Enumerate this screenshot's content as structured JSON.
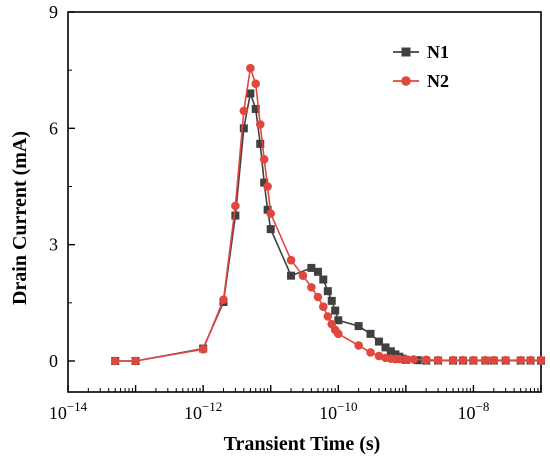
{
  "chart_data": {
    "type": "line",
    "xlabel": "Transient Time (s)",
    "ylabel": "Drain Current (mA)",
    "x_scale": "log",
    "xlim": [
      1e-14,
      1e-07
    ],
    "ylim": [
      -0.8,
      9.0
    ],
    "x_ticks": [
      {
        "value": 1e-14,
        "base": "10",
        "exp": "−14"
      },
      {
        "value": 1e-12,
        "base": "10",
        "exp": "−12"
      },
      {
        "value": 1e-10,
        "base": "10",
        "exp": "−10"
      },
      {
        "value": 1e-08,
        "base": "10",
        "exp": "−8"
      }
    ],
    "y_ticks": [
      0,
      3,
      6,
      9
    ],
    "legend_position": "top-right",
    "grid": false,
    "series": [
      {
        "name": "N1",
        "color": "#404040",
        "marker": "square",
        "x": [
          5e-14,
          1e-13,
          1e-12,
          2e-12,
          3e-12,
          4e-12,
          5e-12,
          6e-12,
          7e-12,
          8e-12,
          9e-12,
          1e-11,
          2e-11,
          4e-11,
          5e-11,
          6e-11,
          7e-11,
          8e-11,
          9e-11,
          1e-10,
          2e-10,
          3e-10,
          4e-10,
          5e-10,
          6e-10,
          7e-10,
          8e-10,
          9e-10,
          1e-09,
          1.5e-09,
          2e-09,
          3e-09,
          5e-09,
          7e-09,
          1e-08,
          1.5e-08,
          2e-08,
          3e-08,
          5e-08,
          7e-08,
          1e-07
        ],
        "y": [
          0.0,
          0.0,
          0.32,
          1.52,
          3.75,
          6.0,
          6.9,
          6.5,
          5.6,
          4.6,
          3.9,
          3.4,
          2.2,
          2.4,
          2.3,
          2.1,
          1.8,
          1.55,
          1.3,
          1.05,
          0.9,
          0.7,
          0.5,
          0.35,
          0.25,
          0.17,
          0.11,
          0.06,
          0.03,
          0.02,
          0.01,
          0.01,
          0.01,
          0.01,
          0.01,
          0.01,
          0.01,
          0.01,
          0.01,
          0.01,
          0.01
        ]
      },
      {
        "name": "N2",
        "color": "#e0473f",
        "marker": "circle",
        "x": [
          5e-14,
          1e-13,
          1e-12,
          2e-12,
          3e-12,
          4e-12,
          5e-12,
          6e-12,
          7e-12,
          8e-12,
          9e-12,
          1e-11,
          2e-11,
          3e-11,
          4e-11,
          5e-11,
          6e-11,
          7e-11,
          8e-11,
          9e-11,
          1e-10,
          2e-10,
          3e-10,
          4e-10,
          5e-10,
          6e-10,
          7e-10,
          8e-10,
          1e-09,
          1.3e-09,
          2e-09,
          3e-09,
          5e-09,
          7e-09,
          1e-08,
          1.5e-08,
          2e-08,
          3e-08,
          5e-08,
          7e-08,
          1e-07
        ],
        "y": [
          0.0,
          0.0,
          0.3,
          1.58,
          4.0,
          6.45,
          7.55,
          7.15,
          6.1,
          5.2,
          4.5,
          3.8,
          2.6,
          2.2,
          1.9,
          1.65,
          1.4,
          1.15,
          0.95,
          0.8,
          0.7,
          0.4,
          0.22,
          0.13,
          0.08,
          0.06,
          0.05,
          0.05,
          0.04,
          0.04,
          0.03,
          0.02,
          0.02,
          0.02,
          0.02,
          0.02,
          0.02,
          0.02,
          0.02,
          0.02,
          0.02
        ]
      }
    ]
  }
}
